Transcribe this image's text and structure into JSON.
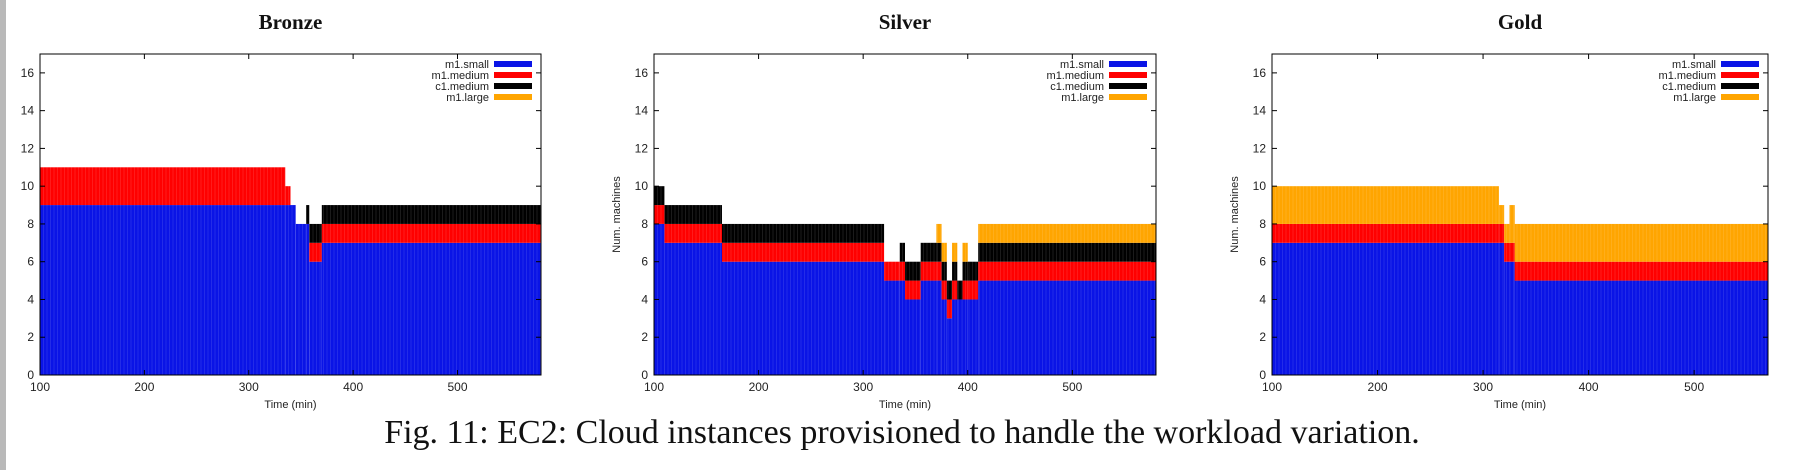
{
  "caption": "Fig. 11: EC2: Cloud instances provisioned to handle the workload variation.",
  "colors": {
    "m1.small": "#0a14e6",
    "m1.medium": "#ff0000",
    "c1.medium": "#000000",
    "m1.large": "#ffa500"
  },
  "chart_data": [
    {
      "type": "bar",
      "stacked": true,
      "title": "Bronze",
      "xlabel": "Time (min)",
      "ylabel": "",
      "xlim": [
        100,
        580
      ],
      "ylim": [
        0,
        17
      ],
      "xticks": [
        100,
        200,
        300,
        400,
        500
      ],
      "yticks": [
        0,
        2,
        4,
        6,
        8,
        10,
        12,
        14,
        16
      ],
      "legend_position": "top-right",
      "series_order": [
        "m1.small",
        "m1.medium",
        "c1.medium",
        "m1.large"
      ],
      "segments": [
        {
          "x": [
            100,
            335
          ],
          "m1.small": 9,
          "m1.medium": 2,
          "c1.medium": 0,
          "m1.large": 0
        },
        {
          "x": [
            335,
            340
          ],
          "m1.small": 9,
          "m1.medium": 1,
          "c1.medium": 0,
          "m1.large": 0
        },
        {
          "x": [
            340,
            345
          ],
          "m1.small": 9,
          "m1.medium": 0,
          "c1.medium": 0,
          "m1.large": 0
        },
        {
          "x": [
            345,
            355
          ],
          "m1.small": 8,
          "m1.medium": 0,
          "c1.medium": 0,
          "m1.large": 0
        },
        {
          "x": [
            355,
            358
          ],
          "m1.small": 8,
          "m1.medium": 0,
          "c1.medium": 1,
          "m1.large": 0
        },
        {
          "x": [
            358,
            370
          ],
          "m1.small": 6,
          "m1.medium": 1,
          "c1.medium": 1,
          "m1.large": 0
        },
        {
          "x": [
            370,
            580
          ],
          "m1.small": 7,
          "m1.medium": 1,
          "c1.medium": 1,
          "m1.large": 0
        }
      ]
    },
    {
      "type": "bar",
      "stacked": true,
      "title": "Silver",
      "xlabel": "Time (min)",
      "ylabel": "Num. machines",
      "xlim": [
        100,
        580
      ],
      "ylim": [
        0,
        17
      ],
      "xticks": [
        100,
        200,
        300,
        400,
        500
      ],
      "yticks": [
        0,
        2,
        4,
        6,
        8,
        10,
        12,
        14,
        16
      ],
      "legend_position": "top-right",
      "series_order": [
        "m1.small",
        "m1.medium",
        "c1.medium",
        "m1.large"
      ],
      "segments": [
        {
          "x": [
            100,
            110
          ],
          "m1.small": 8,
          "m1.medium": 1,
          "c1.medium": 1,
          "m1.large": 0
        },
        {
          "x": [
            110,
            165
          ],
          "m1.small": 7,
          "m1.medium": 1,
          "c1.medium": 1,
          "m1.large": 0
        },
        {
          "x": [
            165,
            320
          ],
          "m1.small": 6,
          "m1.medium": 1,
          "c1.medium": 1,
          "m1.large": 0
        },
        {
          "x": [
            320,
            335
          ],
          "m1.small": 5,
          "m1.medium": 1,
          "c1.medium": 0,
          "m1.large": 0
        },
        {
          "x": [
            335,
            340
          ],
          "m1.small": 5,
          "m1.medium": 1,
          "c1.medium": 1,
          "m1.large": 0
        },
        {
          "x": [
            340,
            355
          ],
          "m1.small": 4,
          "m1.medium": 1,
          "c1.medium": 1,
          "m1.large": 0
        },
        {
          "x": [
            355,
            370
          ],
          "m1.small": 5,
          "m1.medium": 1,
          "c1.medium": 1,
          "m1.large": 0
        },
        {
          "x": [
            370,
            375
          ],
          "m1.small": 5,
          "m1.medium": 1,
          "c1.medium": 1,
          "m1.large": 1
        },
        {
          "x": [
            375,
            380
          ],
          "m1.small": 4,
          "m1.medium": 1,
          "c1.medium": 1,
          "m1.large": 1
        },
        {
          "x": [
            380,
            385
          ],
          "m1.small": 3,
          "m1.medium": 1,
          "c1.medium": 1,
          "m1.large": 0
        },
        {
          "x": [
            385,
            390
          ],
          "m1.small": 4,
          "m1.medium": 1,
          "c1.medium": 1,
          "m1.large": 1
        },
        {
          "x": [
            390,
            395
          ],
          "m1.small": 4,
          "m1.medium": 0,
          "c1.medium": 1,
          "m1.large": 0
        },
        {
          "x": [
            395,
            400
          ],
          "m1.small": 4,
          "m1.medium": 1,
          "c1.medium": 1,
          "m1.large": 1
        },
        {
          "x": [
            400,
            410
          ],
          "m1.small": 4,
          "m1.medium": 1,
          "c1.medium": 1,
          "m1.large": 0
        },
        {
          "x": [
            410,
            580
          ],
          "m1.small": 5,
          "m1.medium": 1,
          "c1.medium": 1,
          "m1.large": 1
        }
      ]
    },
    {
      "type": "bar",
      "stacked": true,
      "title": "Gold",
      "xlabel": "Time (min)",
      "ylabel": "Num. machines",
      "xlim": [
        100,
        570
      ],
      "ylim": [
        0,
        17
      ],
      "xticks": [
        100,
        200,
        300,
        400,
        500
      ],
      "yticks": [
        0,
        2,
        4,
        6,
        8,
        10,
        12,
        14,
        16
      ],
      "legend_position": "top-right",
      "series_order": [
        "m1.small",
        "m1.medium",
        "c1.medium",
        "m1.large"
      ],
      "segments": [
        {
          "x": [
            100,
            315
          ],
          "m1.small": 7,
          "m1.medium": 1,
          "c1.medium": 0,
          "m1.large": 2
        },
        {
          "x": [
            315,
            320
          ],
          "m1.small": 7,
          "m1.medium": 1,
          "c1.medium": 0,
          "m1.large": 1
        },
        {
          "x": [
            320,
            325
          ],
          "m1.small": 6,
          "m1.medium": 1,
          "c1.medium": 0,
          "m1.large": 1
        },
        {
          "x": [
            325,
            330
          ],
          "m1.small": 6,
          "m1.medium": 1,
          "c1.medium": 0,
          "m1.large": 2
        },
        {
          "x": [
            330,
            570
          ],
          "m1.small": 5,
          "m1.medium": 1,
          "c1.medium": 0,
          "m1.large": 2
        }
      ]
    }
  ]
}
